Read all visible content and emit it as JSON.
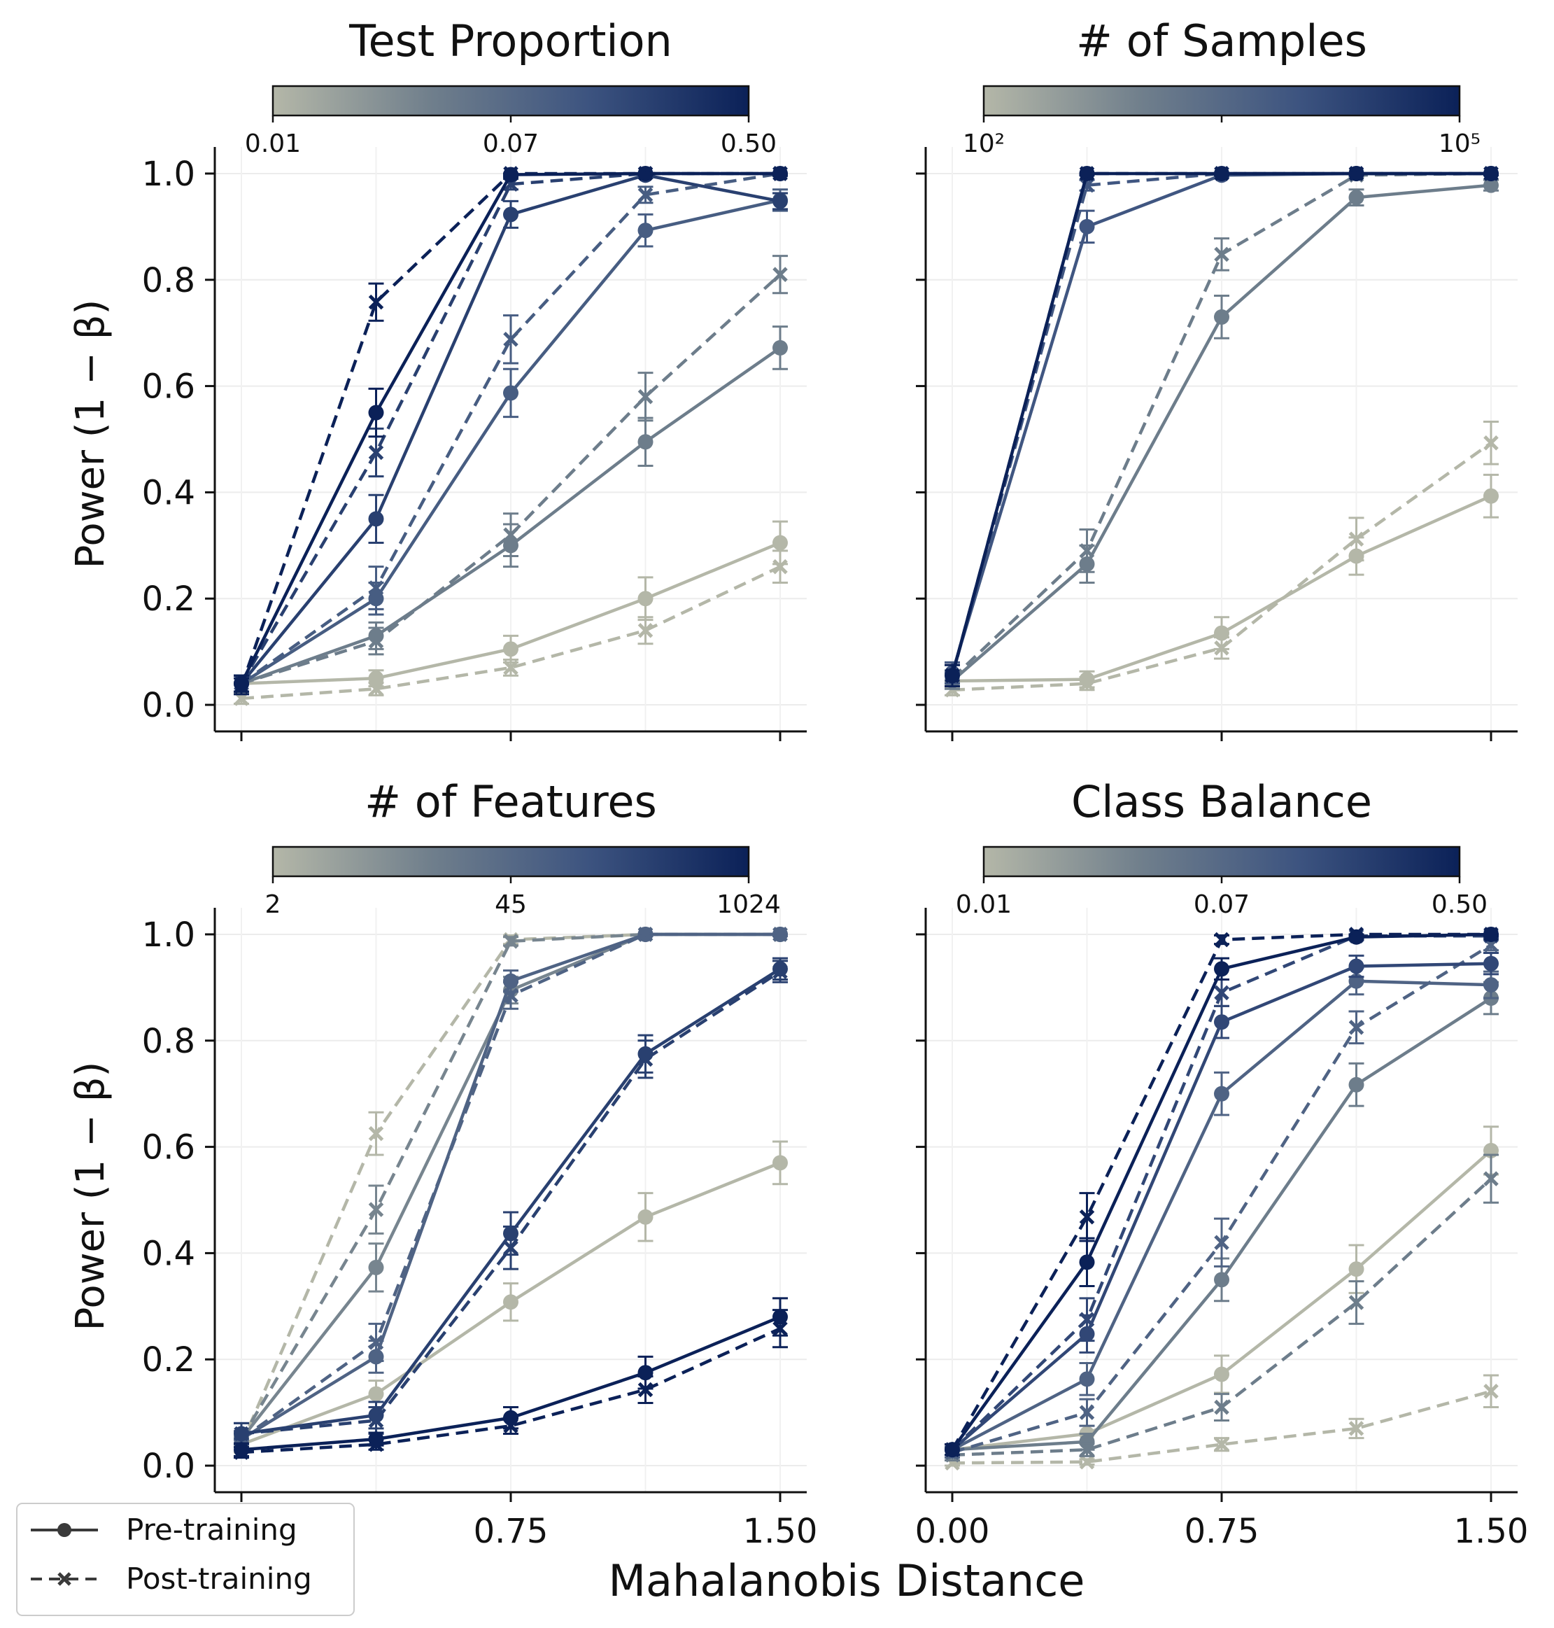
{
  "figure": {
    "xlabel": "Mahalanobis Distance",
    "ylabel": "Power (1 − β)",
    "legend": {
      "placement": "bottom-left",
      "entries": [
        {
          "label": "Pre-training",
          "linestyle": "solid",
          "marker": "circle"
        },
        {
          "label": "Post-training",
          "linestyle": "dashed",
          "marker": "x"
        }
      ]
    },
    "colormap": [
      "#b4b7a8",
      "#707f8c",
      "#3d5480",
      "#0b2158"
    ]
  },
  "chart_data": [
    {
      "type": "line",
      "title": "Test Proportion",
      "colorbar": {
        "ticks": [
          "0.01",
          "0.07",
          "0.50"
        ],
        "positions": [
          0,
          0.5,
          1
        ],
        "scale": "log"
      },
      "x": [
        0,
        0.375,
        0.75,
        1.125,
        1.5
      ],
      "xticks": [
        "0.00",
        "0.75",
        "1.50"
      ],
      "ylim": [
        -0.05,
        1.05
      ],
      "yticks": [
        "0.0",
        "0.2",
        "0.4",
        "0.6",
        "0.8",
        "1.0"
      ],
      "grid": true,
      "series": [
        {
          "t": 0.0,
          "style": "pre",
          "values": [
            0.04,
            0.05,
            0.105,
            0.2,
            0.305
          ],
          "errors": [
            0.015,
            0.015,
            0.025,
            0.04,
            0.04
          ]
        },
        {
          "t": 0.0,
          "style": "post",
          "values": [
            0.012,
            0.03,
            0.07,
            0.14,
            0.26
          ],
          "errors": [
            0.01,
            0.012,
            0.015,
            0.025,
            0.03
          ]
        },
        {
          "t": 0.35,
          "style": "pre",
          "values": [
            0.04,
            0.13,
            0.3,
            0.495,
            0.672
          ],
          "errors": [
            0.015,
            0.025,
            0.04,
            0.045,
            0.04
          ]
        },
        {
          "t": 0.35,
          "style": "post",
          "values": [
            0.04,
            0.12,
            0.32,
            0.58,
            0.81
          ],
          "errors": [
            0.015,
            0.025,
            0.04,
            0.045,
            0.035
          ]
        },
        {
          "t": 0.6,
          "style": "pre",
          "values": [
            0.04,
            0.2,
            0.587,
            0.893,
            0.95
          ],
          "errors": [
            0.015,
            0.03,
            0.045,
            0.03,
            0.02
          ]
        },
        {
          "t": 0.6,
          "style": "post",
          "values": [
            0.04,
            0.22,
            0.688,
            0.96,
            1.0
          ],
          "errors": [
            0.015,
            0.04,
            0.045,
            0.015,
            0.005
          ]
        },
        {
          "t": 0.8,
          "style": "pre",
          "values": [
            0.04,
            0.35,
            0.923,
            0.997,
            0.948
          ],
          "errors": [
            0.015,
            0.045,
            0.025,
            0.005,
            0.015
          ]
        },
        {
          "t": 0.8,
          "style": "post",
          "values": [
            0.04,
            0.475,
            0.98,
            1.0,
            1.0
          ],
          "errors": [
            0.015,
            0.045,
            0.01,
            0.003,
            0.003
          ]
        },
        {
          "t": 1.0,
          "style": "pre",
          "values": [
            0.04,
            0.55,
            0.998,
            1.0,
            1.0
          ],
          "errors": [
            0.015,
            0.045,
            0.004,
            0.003,
            0.003
          ]
        },
        {
          "t": 1.0,
          "style": "post",
          "values": [
            0.035,
            0.758,
            1.0,
            1.0,
            1.0
          ],
          "errors": [
            0.015,
            0.035,
            0.003,
            0.003,
            0.003
          ]
        }
      ]
    },
    {
      "type": "line",
      "title": "# of Samples",
      "colorbar": {
        "ticks": [
          "10²",
          "10⁵"
        ],
        "positions": [
          0,
          1
        ],
        "scale": "log",
        "minor_ticks": [
          0.5
        ]
      },
      "x": [
        0,
        0.375,
        0.75,
        1.125,
        1.5
      ],
      "xticks": [
        "0.00",
        "0.75",
        "1.50"
      ],
      "ylim": [
        -0.05,
        1.05
      ],
      "yticks": [],
      "grid": true,
      "series": [
        {
          "t": 0.0,
          "style": "pre",
          "values": [
            0.045,
            0.048,
            0.135,
            0.28,
            0.393
          ],
          "errors": [
            0.012,
            0.015,
            0.03,
            0.035,
            0.04
          ]
        },
        {
          "t": 0.0,
          "style": "post",
          "values": [
            0.028,
            0.04,
            0.107,
            0.312,
            0.493
          ],
          "errors": [
            0.01,
            0.012,
            0.02,
            0.04,
            0.04
          ]
        },
        {
          "t": 0.35,
          "style": "pre",
          "values": [
            0.045,
            0.265,
            0.73,
            0.955,
            0.978
          ],
          "errors": [
            0.015,
            0.035,
            0.04,
            0.015,
            0.01
          ]
        },
        {
          "t": 0.35,
          "style": "post",
          "values": [
            0.05,
            0.29,
            0.848,
            0.997,
            1.0
          ],
          "errors": [
            0.015,
            0.04,
            0.03,
            0.004,
            0.003
          ]
        },
        {
          "t": 0.65,
          "style": "pre",
          "values": [
            0.06,
            0.9,
            0.997,
            1.0,
            1.0
          ],
          "errors": [
            0.02,
            0.03,
            0.004,
            0.003,
            0.003
          ]
        },
        {
          "t": 0.65,
          "style": "post",
          "values": [
            0.055,
            0.978,
            1.0,
            1.0,
            1.0
          ],
          "errors": [
            0.02,
            0.01,
            0.003,
            0.003,
            0.003
          ]
        },
        {
          "t": 1.0,
          "style": "pre",
          "values": [
            0.055,
            1.0,
            1.0,
            1.0,
            1.0
          ],
          "errors": [
            0.02,
            0.003,
            0.003,
            0.003,
            0.003
          ]
        },
        {
          "t": 1.0,
          "style": "post",
          "values": [
            0.055,
            1.0,
            1.0,
            1.0,
            1.0
          ],
          "errors": [
            0.02,
            0.003,
            0.003,
            0.003,
            0.003
          ]
        }
      ]
    },
    {
      "type": "line",
      "title": "# of Features",
      "colorbar": {
        "ticks": [
          "2",
          "45",
          "1024"
        ],
        "positions": [
          0,
          0.5,
          1
        ],
        "scale": "log"
      },
      "x": [
        0,
        0.375,
        0.75,
        1.125,
        1.5
      ],
      "xticks": [
        "0.00",
        "0.75",
        "1.50"
      ],
      "ylim": [
        -0.05,
        1.05
      ],
      "yticks": [
        "0.0",
        "0.2",
        "0.4",
        "0.6",
        "0.8",
        "1.0"
      ],
      "grid": true,
      "series": [
        {
          "t": 0.0,
          "style": "pre",
          "values": [
            0.04,
            0.135,
            0.308,
            0.468,
            0.57
          ],
          "errors": [
            0.015,
            0.025,
            0.035,
            0.045,
            0.04
          ]
        },
        {
          "t": 0.0,
          "style": "post",
          "values": [
            0.04,
            0.625,
            0.99,
            1.0,
            1.0
          ],
          "errors": [
            0.015,
            0.04,
            0.008,
            0.003,
            0.003
          ]
        },
        {
          "t": 0.3,
          "style": "pre",
          "values": [
            0.05,
            0.373,
            0.895,
            1.0,
            1.0
          ],
          "errors": [
            0.015,
            0.045,
            0.025,
            0.003,
            0.003
          ]
        },
        {
          "t": 0.3,
          "style": "post",
          "values": [
            0.05,
            0.482,
            0.987,
            1.0,
            1.0
          ],
          "errors": [
            0.015,
            0.045,
            0.008,
            0.003,
            0.003
          ]
        },
        {
          "t": 0.55,
          "style": "pre",
          "values": [
            0.05,
            0.205,
            0.912,
            1.0,
            1.0
          ],
          "errors": [
            0.015,
            0.03,
            0.02,
            0.003,
            0.003
          ]
        },
        {
          "t": 0.55,
          "style": "post",
          "values": [
            0.05,
            0.232,
            0.885,
            1.0,
            1.0
          ],
          "errors": [
            0.015,
            0.035,
            0.025,
            0.003,
            0.003
          ]
        },
        {
          "t": 0.8,
          "style": "pre",
          "values": [
            0.06,
            0.095,
            0.437,
            0.775,
            0.935
          ],
          "errors": [
            0.02,
            0.025,
            0.04,
            0.035,
            0.02
          ]
        },
        {
          "t": 0.8,
          "style": "post",
          "values": [
            0.06,
            0.085,
            0.41,
            0.765,
            0.93
          ],
          "errors": [
            0.02,
            0.025,
            0.04,
            0.035,
            0.02
          ]
        },
        {
          "t": 1.0,
          "style": "pre",
          "values": [
            0.03,
            0.05,
            0.09,
            0.175,
            0.28
          ],
          "errors": [
            0.012,
            0.012,
            0.02,
            0.03,
            0.035
          ]
        },
        {
          "t": 1.0,
          "style": "post",
          "values": [
            0.025,
            0.04,
            0.075,
            0.143,
            0.258
          ],
          "errors": [
            0.01,
            0.01,
            0.015,
            0.025,
            0.035
          ]
        }
      ]
    },
    {
      "type": "line",
      "title": "Class Balance",
      "colorbar": {
        "ticks": [
          "0.01",
          "0.07",
          "0.50"
        ],
        "positions": [
          0,
          0.5,
          1
        ],
        "scale": "log"
      },
      "x": [
        0,
        0.375,
        0.75,
        1.125,
        1.5
      ],
      "xticks": [
        "0.00",
        "0.75",
        "1.50"
      ],
      "ylim": [
        -0.05,
        1.05
      ],
      "yticks": [],
      "grid": true,
      "series": [
        {
          "t": 0.0,
          "style": "pre",
          "values": [
            0.03,
            0.06,
            0.172,
            0.37,
            0.593
          ],
          "errors": [
            0.01,
            0.015,
            0.035,
            0.045,
            0.045
          ]
        },
        {
          "t": 0.0,
          "style": "post",
          "values": [
            0.005,
            0.007,
            0.04,
            0.07,
            0.14
          ],
          "errors": [
            0.005,
            0.005,
            0.012,
            0.018,
            0.03
          ]
        },
        {
          "t": 0.35,
          "style": "pre",
          "values": [
            0.03,
            0.045,
            0.35,
            0.717,
            0.88
          ],
          "errors": [
            0.01,
            0.015,
            0.04,
            0.04,
            0.03
          ]
        },
        {
          "t": 0.35,
          "style": "post",
          "values": [
            0.02,
            0.03,
            0.11,
            0.307,
            0.54
          ],
          "errors": [
            0.01,
            0.012,
            0.025,
            0.04,
            0.045
          ]
        },
        {
          "t": 0.55,
          "style": "pre",
          "values": [
            0.03,
            0.163,
            0.7,
            0.912,
            0.905
          ],
          "errors": [
            0.01,
            0.03,
            0.04,
            0.025,
            0.025
          ]
        },
        {
          "t": 0.55,
          "style": "post",
          "values": [
            0.025,
            0.1,
            0.42,
            0.825,
            0.98
          ],
          "errors": [
            0.01,
            0.025,
            0.045,
            0.03,
            0.01
          ]
        },
        {
          "t": 0.75,
          "style": "pre",
          "values": [
            0.03,
            0.248,
            0.835,
            0.94,
            0.945
          ],
          "errors": [
            0.01,
            0.035,
            0.03,
            0.02,
            0.02
          ]
        },
        {
          "t": 0.75,
          "style": "post",
          "values": [
            0.03,
            0.275,
            0.89,
            0.997,
            0.997
          ],
          "errors": [
            0.01,
            0.04,
            0.025,
            0.004,
            0.004
          ]
        },
        {
          "t": 1.0,
          "style": "pre",
          "values": [
            0.03,
            0.383,
            0.935,
            0.995,
            1.0
          ],
          "errors": [
            0.01,
            0.045,
            0.02,
            0.005,
            0.003
          ]
        },
        {
          "t": 1.0,
          "style": "post",
          "values": [
            0.03,
            0.468,
            0.99,
            1.0,
            1.0
          ],
          "errors": [
            0.01,
            0.045,
            0.008,
            0.003,
            0.003
          ]
        }
      ]
    }
  ]
}
